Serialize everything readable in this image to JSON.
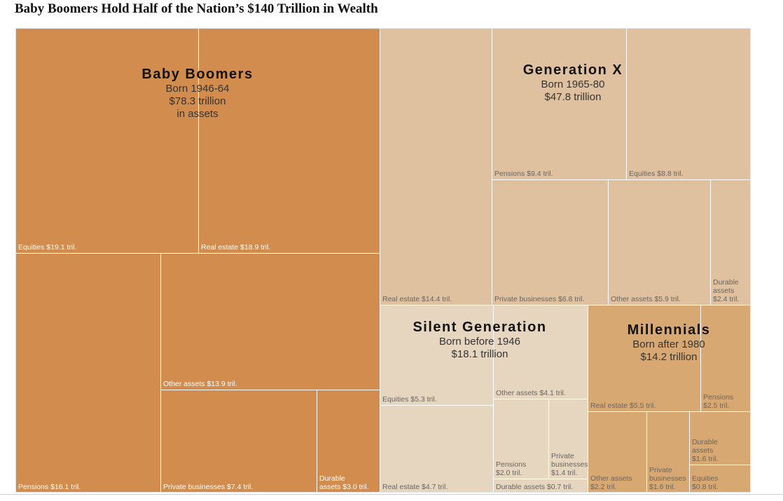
{
  "title": "Baby Boomers Hold Half of the Nation’s $140 Trillion in Wealth",
  "colors": {
    "Baby Boomers": "#d18c4e",
    "Generation X": "#dfc19f",
    "Silent Generation": "#e6d6c0",
    "Millennials": "#d8a873",
    "label_dark": "#ffffff",
    "label_light": "#666666"
  },
  "chart_data": {
    "type": "treemap",
    "title": "Baby Boomers Hold Half of the Nation’s $140 Trillion in Wealth",
    "unit": "trillion USD",
    "groups": [
      {
        "name": "Baby Boomers",
        "lines": [
          "Born 1946-64",
          "$78.3 trillion",
          "in assets"
        ],
        "total": 78.3,
        "children": [
          {
            "name": "Equities",
            "value": 19.1,
            "label": "Equities $19.1 tril."
          },
          {
            "name": "Real estate",
            "value": 18.9,
            "label": "Real estate $18.9 tril."
          },
          {
            "name": "Pensions",
            "value": 16.1,
            "label": "Pensions $16.1 tril."
          },
          {
            "name": "Other assets",
            "value": 13.9,
            "label": "Other assets $13.9 tril."
          },
          {
            "name": "Private businesses",
            "value": 7.4,
            "label": "Private businesses $7.4 tril."
          },
          {
            "name": "Durable assets",
            "value": 3.0,
            "label": "Durable\nassets $3.0 tril."
          }
        ]
      },
      {
        "name": "Generation X",
        "lines": [
          "Born 1965-80",
          "$47.8 trillion"
        ],
        "total": 47.8,
        "children": [
          {
            "name": "Real estate",
            "value": 14.4,
            "label": "Real estate $14.4 tril."
          },
          {
            "name": "Pensions",
            "value": 9.4,
            "label": "Pensions $9.4 tril."
          },
          {
            "name": "Equities",
            "value": 8.8,
            "label": "Equities $8.8 tril."
          },
          {
            "name": "Private businesses",
            "value": 6.8,
            "label": "Private businesses $6.8 tril."
          },
          {
            "name": "Other assets",
            "value": 5.9,
            "label": "Other assets $5.9 tril."
          },
          {
            "name": "Durable assets",
            "value": 2.4,
            "label": "Durable\nassets\n$2.4 tril."
          }
        ]
      },
      {
        "name": "Silent Generation",
        "lines": [
          "Born before 1946",
          "$18.1 trillion"
        ],
        "total": 18.1,
        "children": [
          {
            "name": "Equities",
            "value": 5.3,
            "label": "Equities $5.3 tril."
          },
          {
            "name": "Real estate",
            "value": 4.7,
            "label": "Real estate $4.7 tril."
          },
          {
            "name": "Other assets",
            "value": 4.1,
            "label": "Other assets $4.1 tril."
          },
          {
            "name": "Pensions",
            "value": 2.0,
            "label": "Pensions\n$2.0 tril."
          },
          {
            "name": "Private businesses",
            "value": 1.4,
            "label": "Private\nbusinesses\n$1.4 tril."
          },
          {
            "name": "Durable assets",
            "value": 0.7,
            "label": "Durable assets $0.7 tril."
          }
        ]
      },
      {
        "name": "Millennials",
        "lines": [
          "Born after 1980",
          "$14.2 trillion"
        ],
        "total": 14.2,
        "children": [
          {
            "name": "Real estate",
            "value": 5.5,
            "label": "Real estate $5.5 tril."
          },
          {
            "name": "Pensions",
            "value": 2.5,
            "label": "Pensions\n$2.5 tril."
          },
          {
            "name": "Other assets",
            "value": 2.2,
            "label": "Other assets\n$2.2 tril."
          },
          {
            "name": "Private businesses",
            "value": 1.6,
            "label": "Private\nbusinesses\n$1.6 tril."
          },
          {
            "name": "Durable assets",
            "value": 1.6,
            "label": "Durable\nassets\n$1.6 tril."
          },
          {
            "name": "Equities",
            "value": 0.8,
            "label": "Equities\n$0.8 tril."
          }
        ]
      }
    ]
  }
}
